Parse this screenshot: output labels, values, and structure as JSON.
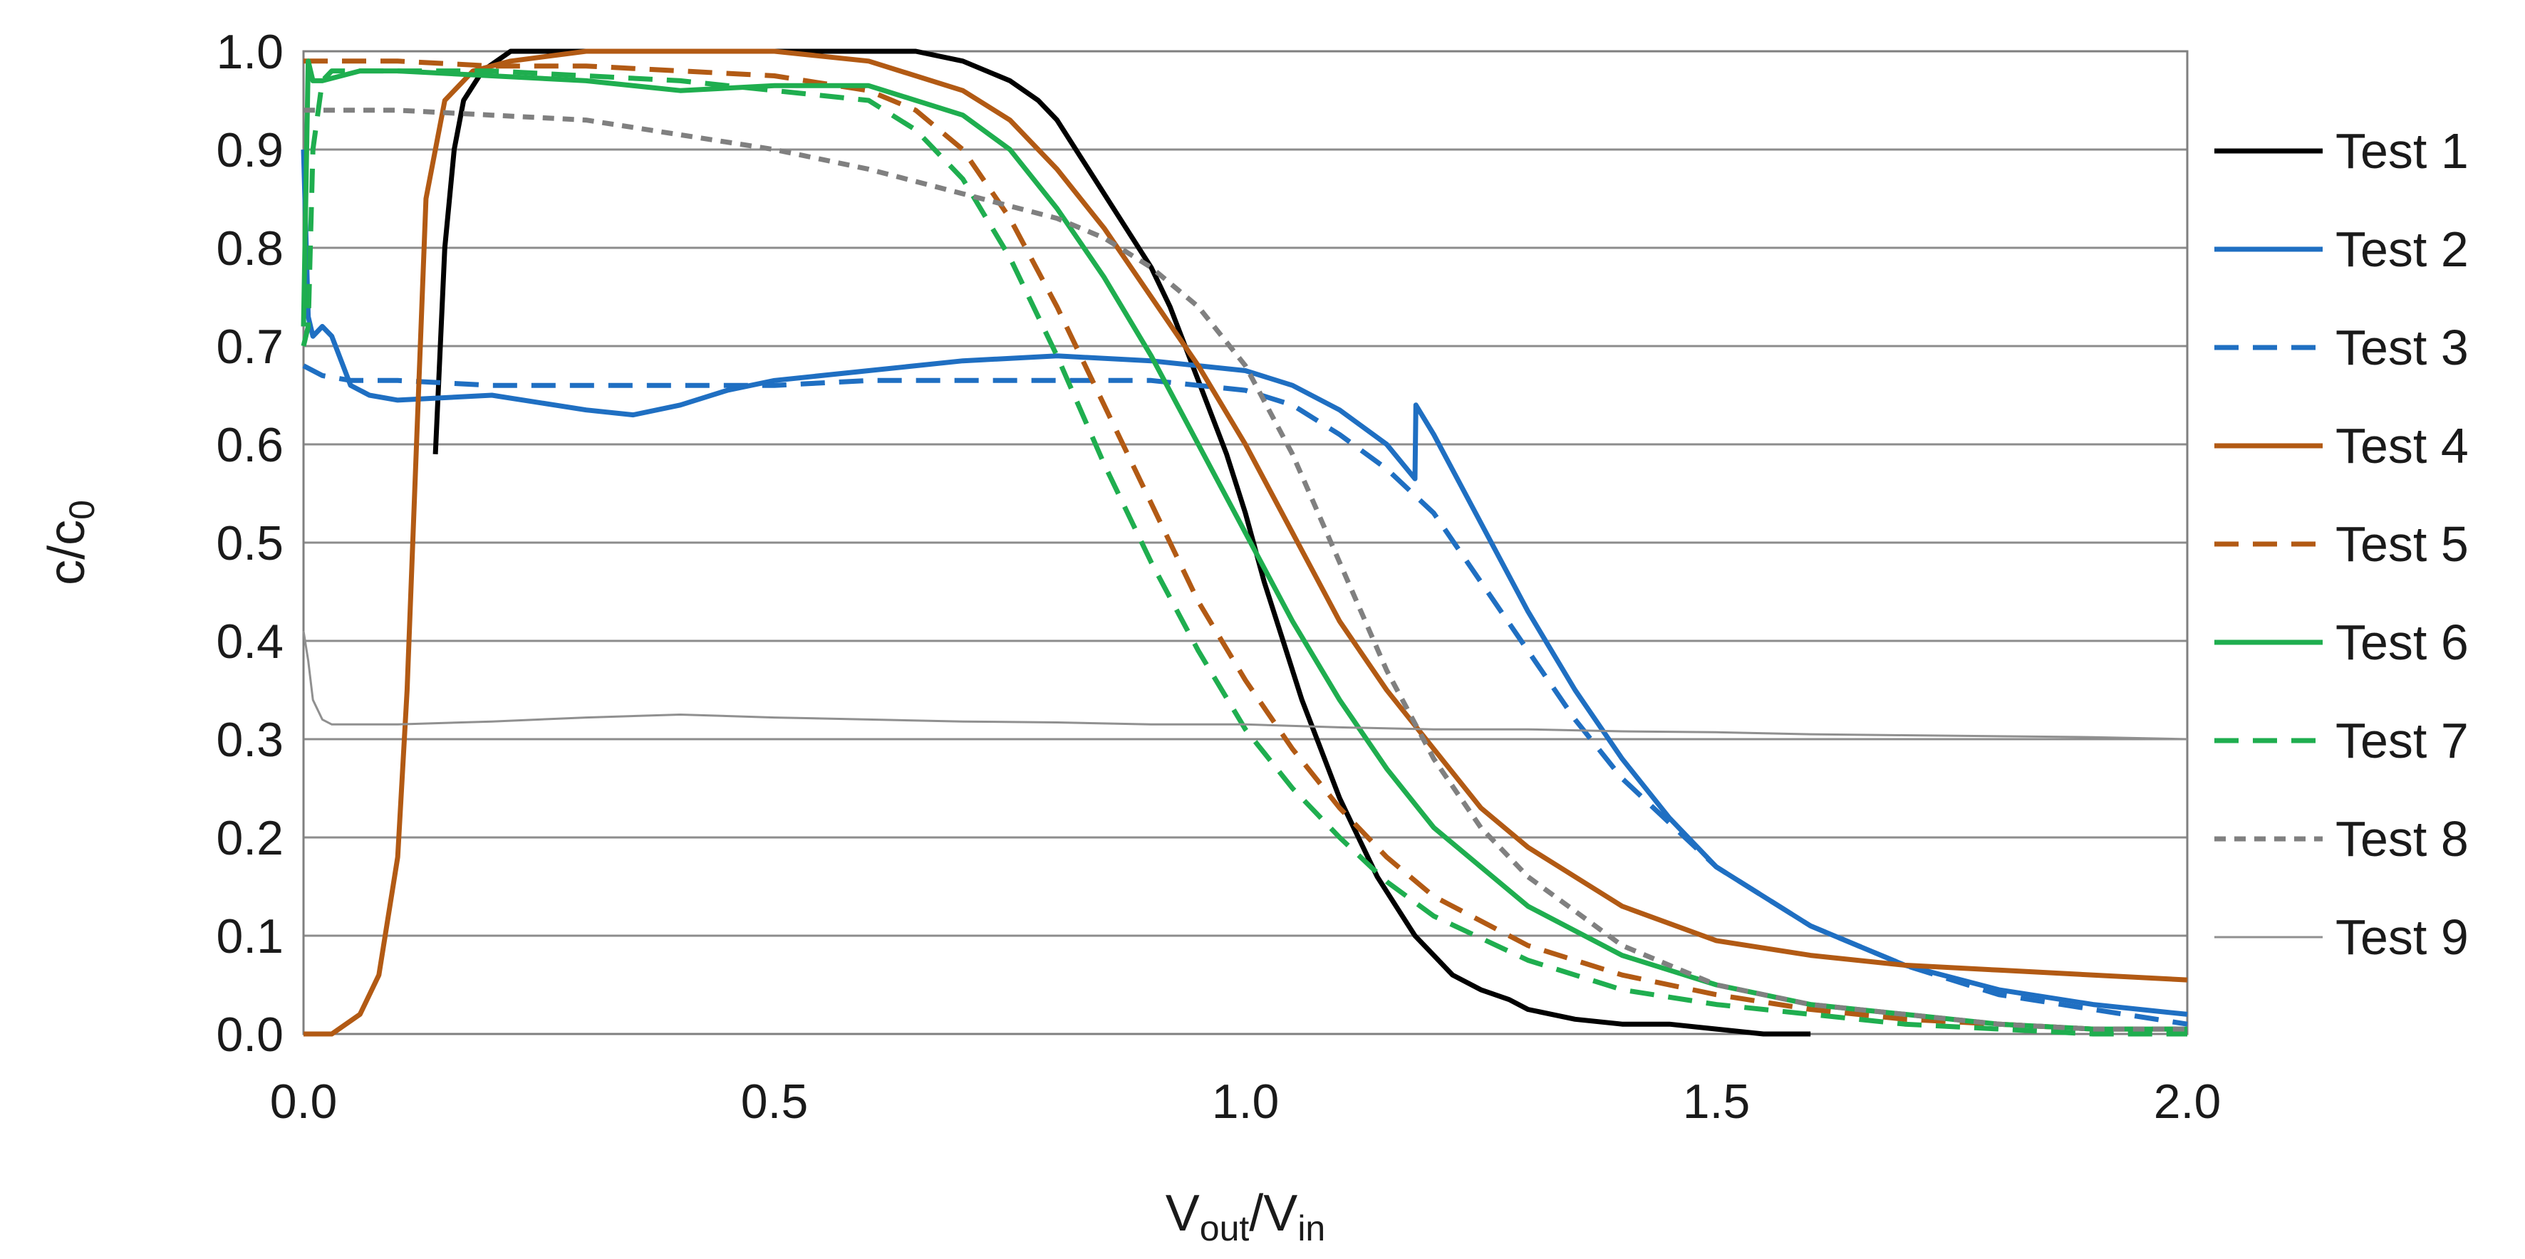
{
  "chart_data": {
    "type": "line",
    "title": "",
    "xlabel": {
      "main": "V",
      "sub1": "out",
      "sep": "/V",
      "sub2": "in"
    },
    "ylabel": {
      "main": "c/c",
      "sub": "0"
    },
    "xlim": [
      0,
      2.0
    ],
    "ylim": [
      0,
      1.0
    ],
    "xticks": [
      0.0,
      0.5,
      1.0,
      1.5,
      2.0
    ],
    "xtick_labels": [
      "0.0",
      "0.5",
      "1.0",
      "1.5",
      "2.0"
    ],
    "yticks": [
      0.0,
      0.1,
      0.2,
      0.3,
      0.4,
      0.5,
      0.6,
      0.7,
      0.8,
      0.9,
      1.0
    ],
    "ytick_labels": [
      "0.0",
      "0.1",
      "0.2",
      "0.3",
      "0.4",
      "0.5",
      "0.6",
      "0.7",
      "0.8",
      "0.9",
      "1.0"
    ],
    "grid": "horizontal",
    "legend_position": "right",
    "series": [
      {
        "name": "Test 1",
        "color": "#000000",
        "dash": "solid",
        "width": 7,
        "x": [
          0.14,
          0.15,
          0.16,
          0.17,
          0.19,
          0.22,
          0.3,
          0.45,
          0.6,
          0.65,
          0.7,
          0.75,
          0.78,
          0.8,
          0.82,
          0.84,
          0.86,
          0.88,
          0.9,
          0.92,
          0.94,
          0.96,
          0.98,
          1.0,
          1.02,
          1.04,
          1.06,
          1.08,
          1.1,
          1.12,
          1.14,
          1.16,
          1.18,
          1.2,
          1.22,
          1.25,
          1.28,
          1.3,
          1.35,
          1.4,
          1.45,
          1.5,
          1.55,
          1.6
        ],
        "y": [
          0.59,
          0.8,
          0.9,
          0.95,
          0.98,
          1.0,
          1.0,
          1.0,
          1.0,
          1.0,
          0.99,
          0.97,
          0.95,
          0.93,
          0.9,
          0.87,
          0.84,
          0.81,
          0.78,
          0.74,
          0.69,
          0.64,
          0.59,
          0.53,
          0.46,
          0.4,
          0.34,
          0.29,
          0.24,
          0.2,
          0.16,
          0.13,
          0.1,
          0.08,
          0.06,
          0.045,
          0.035,
          0.025,
          0.015,
          0.01,
          0.01,
          0.005,
          0.0,
          0.0
        ]
      },
      {
        "name": "Test 2",
        "color": "#1f6fc2",
        "dash": "solid",
        "width": 7,
        "x": [
          0.0,
          0.005,
          0.01,
          0.02,
          0.03,
          0.05,
          0.07,
          0.1,
          0.2,
          0.3,
          0.35,
          0.4,
          0.45,
          0.5,
          0.6,
          0.7,
          0.8,
          0.9,
          1.0,
          1.05,
          1.1,
          1.15,
          1.18,
          1.181,
          1.2,
          1.25,
          1.3,
          1.35,
          1.4,
          1.45,
          1.5,
          1.6,
          1.7,
          1.8,
          1.9,
          2.0
        ],
        "y": [
          0.9,
          0.73,
          0.71,
          0.72,
          0.71,
          0.66,
          0.65,
          0.645,
          0.65,
          0.635,
          0.63,
          0.64,
          0.655,
          0.665,
          0.675,
          0.685,
          0.69,
          0.685,
          0.675,
          0.66,
          0.635,
          0.6,
          0.565,
          0.64,
          0.61,
          0.52,
          0.43,
          0.35,
          0.28,
          0.22,
          0.17,
          0.11,
          0.07,
          0.045,
          0.03,
          0.02
        ]
      },
      {
        "name": "Test 3",
        "color": "#1f6fc2",
        "dash": "dashed",
        "width": 7,
        "x": [
          0.0,
          0.02,
          0.05,
          0.1,
          0.2,
          0.3,
          0.4,
          0.5,
          0.6,
          0.7,
          0.8,
          0.9,
          1.0,
          1.05,
          1.1,
          1.15,
          1.2,
          1.25,
          1.3,
          1.35,
          1.4,
          1.5,
          1.6,
          1.7,
          1.8,
          1.9,
          2.0
        ],
        "y": [
          0.68,
          0.67,
          0.665,
          0.665,
          0.66,
          0.66,
          0.66,
          0.66,
          0.665,
          0.665,
          0.665,
          0.665,
          0.655,
          0.64,
          0.61,
          0.575,
          0.53,
          0.46,
          0.39,
          0.32,
          0.26,
          0.17,
          0.11,
          0.07,
          0.04,
          0.025,
          0.01
        ]
      },
      {
        "name": "Test 4",
        "color": "#b25a14",
        "dash": "solid",
        "width": 7,
        "x": [
          0.0,
          0.03,
          0.06,
          0.08,
          0.1,
          0.11,
          0.12,
          0.13,
          0.15,
          0.18,
          0.22,
          0.3,
          0.4,
          0.5,
          0.6,
          0.7,
          0.75,
          0.8,
          0.85,
          0.9,
          0.95,
          1.0,
          1.05,
          1.1,
          1.15,
          1.2,
          1.25,
          1.3,
          1.4,
          1.5,
          1.6,
          1.7,
          1.8,
          1.9,
          2.0
        ],
        "y": [
          0.0,
          0.0,
          0.02,
          0.06,
          0.18,
          0.35,
          0.6,
          0.85,
          0.95,
          0.98,
          0.99,
          1.0,
          1.0,
          1.0,
          0.99,
          0.96,
          0.93,
          0.88,
          0.82,
          0.75,
          0.68,
          0.6,
          0.51,
          0.42,
          0.35,
          0.29,
          0.23,
          0.19,
          0.13,
          0.095,
          0.08,
          0.07,
          0.065,
          0.06,
          0.055
        ]
      },
      {
        "name": "Test 5",
        "color": "#b25a14",
        "dash": "dashed",
        "width": 7,
        "x": [
          0.0,
          0.1,
          0.2,
          0.3,
          0.4,
          0.5,
          0.6,
          0.65,
          0.7,
          0.75,
          0.8,
          0.85,
          0.9,
          0.95,
          1.0,
          1.05,
          1.1,
          1.15,
          1.2,
          1.3,
          1.4,
          1.5,
          1.6,
          1.7,
          1.8,
          1.9,
          2.0
        ],
        "y": [
          0.99,
          0.99,
          0.985,
          0.985,
          0.98,
          0.975,
          0.96,
          0.94,
          0.9,
          0.83,
          0.74,
          0.64,
          0.54,
          0.44,
          0.36,
          0.29,
          0.23,
          0.18,
          0.14,
          0.09,
          0.06,
          0.04,
          0.025,
          0.015,
          0.01,
          0.005,
          0.005
        ]
      },
      {
        "name": "Test 6",
        "color": "#1fae4f",
        "dash": "solid",
        "width": 7,
        "x": [
          0.0,
          0.005,
          0.01,
          0.02,
          0.04,
          0.06,
          0.1,
          0.2,
          0.3,
          0.4,
          0.5,
          0.6,
          0.7,
          0.75,
          0.8,
          0.85,
          0.9,
          0.95,
          1.0,
          1.05,
          1.1,
          1.15,
          1.2,
          1.3,
          1.4,
          1.5,
          1.6,
          1.7,
          1.8,
          1.9,
          2.0
        ],
        "y": [
          0.72,
          0.99,
          0.97,
          0.97,
          0.975,
          0.98,
          0.98,
          0.975,
          0.97,
          0.96,
          0.965,
          0.965,
          0.935,
          0.9,
          0.84,
          0.77,
          0.69,
          0.6,
          0.51,
          0.42,
          0.34,
          0.27,
          0.21,
          0.13,
          0.08,
          0.05,
          0.03,
          0.02,
          0.01,
          0.005,
          0.005
        ]
      },
      {
        "name": "Test 7",
        "color": "#1fae4f",
        "dash": "dashed",
        "width": 7,
        "x": [
          0.0,
          0.005,
          0.01,
          0.02,
          0.03,
          0.05,
          0.1,
          0.2,
          0.3,
          0.4,
          0.5,
          0.6,
          0.65,
          0.7,
          0.75,
          0.8,
          0.85,
          0.9,
          0.95,
          1.0,
          1.05,
          1.1,
          1.15,
          1.2,
          1.3,
          1.4,
          1.5,
          1.6,
          1.7,
          1.8,
          1.9,
          2.0
        ],
        "y": [
          0.7,
          0.72,
          0.9,
          0.97,
          0.98,
          0.98,
          0.98,
          0.98,
          0.975,
          0.97,
          0.96,
          0.95,
          0.92,
          0.87,
          0.79,
          0.69,
          0.58,
          0.48,
          0.39,
          0.31,
          0.25,
          0.2,
          0.155,
          0.12,
          0.075,
          0.045,
          0.03,
          0.02,
          0.01,
          0.005,
          0.0,
          0.0
        ]
      },
      {
        "name": "Test 8",
        "color": "#808080",
        "dash": "dotted",
        "width": 7,
        "x": [
          0.0,
          0.02,
          0.05,
          0.1,
          0.2,
          0.3,
          0.4,
          0.5,
          0.6,
          0.7,
          0.8,
          0.85,
          0.9,
          0.95,
          1.0,
          1.05,
          1.1,
          1.15,
          1.2,
          1.25,
          1.3,
          1.4,
          1.5,
          1.6,
          1.7,
          1.8,
          1.9,
          2.0
        ],
        "y": [
          0.94,
          0.94,
          0.94,
          0.94,
          0.935,
          0.93,
          0.915,
          0.9,
          0.88,
          0.855,
          0.83,
          0.81,
          0.78,
          0.74,
          0.68,
          0.59,
          0.48,
          0.37,
          0.28,
          0.21,
          0.16,
          0.09,
          0.05,
          0.03,
          0.02,
          0.01,
          0.005,
          0.005
        ]
      },
      {
        "name": "Test 9",
        "color": "#909090",
        "dash": "solid",
        "width": 3,
        "x": [
          0.0,
          0.005,
          0.01,
          0.02,
          0.03,
          0.05,
          0.1,
          0.2,
          0.3,
          0.4,
          0.5,
          0.6,
          0.7,
          0.8,
          0.9,
          1.0,
          1.1,
          1.2,
          1.3,
          1.4,
          1.5,
          1.6,
          1.7,
          1.8,
          1.9,
          2.0
        ],
        "y": [
          0.41,
          0.38,
          0.34,
          0.32,
          0.315,
          0.315,
          0.315,
          0.318,
          0.322,
          0.325,
          0.322,
          0.32,
          0.318,
          0.317,
          0.315,
          0.315,
          0.312,
          0.31,
          0.31,
          0.308,
          0.307,
          0.305,
          0.304,
          0.303,
          0.302,
          0.3
        ]
      }
    ]
  }
}
